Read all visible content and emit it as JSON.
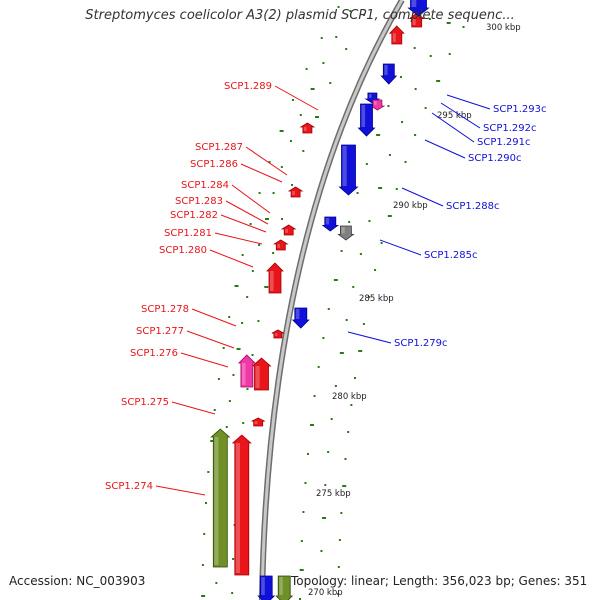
{
  "title": "Streptomyces coelicolor A3(2) plasmid SCP1, complete sequenc...",
  "footer": {
    "accession": "Accession: NC_003903",
    "summary": "Topology: linear; Length: 356,023 bp; Genes: 351"
  },
  "colors": {
    "forward": "#e8151b",
    "reverse": "#1010d8",
    "magenta": "#ef3aa6",
    "olive": "#6f8f27",
    "gray": "#808080",
    "tick": "#2a7a1a",
    "backbone": "#909090"
  },
  "ticks": [
    "295 kbp",
    "290 kbp",
    "285 kbp",
    "280 kbp",
    "275 kbp",
    "270 kbp",
    "300 kbp"
  ],
  "genes_left": [
    "SCP1.289",
    "SCP1.287",
    "SCP1.286",
    "SCP1.284",
    "SCP1.283",
    "SCP1.282",
    "SCP1.281",
    "SCP1.280",
    "SCP1.278",
    "SCP1.277",
    "SCP1.276",
    "SCP1.275",
    "SCP1.274"
  ],
  "genes_right": [
    "SCP1.293c",
    "SCP1.292c",
    "SCP1.291c",
    "SCP1.290c",
    "SCP1.288c",
    "SCP1.285c",
    "SCP1.279c"
  ]
}
